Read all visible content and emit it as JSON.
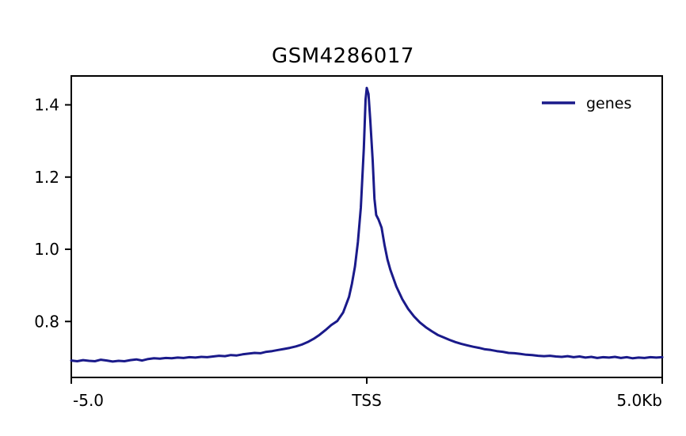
{
  "figure": {
    "background": "#ffffff",
    "axis_color": "#000000",
    "tick_label_color": "#000000"
  },
  "chart_data": {
    "type": "line",
    "title": "GSM4286017",
    "xlabel": "",
    "ylabel": "",
    "x_unit": "Kb",
    "xlim": [
      -5.0,
      5.0
    ],
    "ylim": [
      0.645,
      1.48
    ],
    "grid": false,
    "legend_position": "upper right",
    "xticks": [
      {
        "pos": -5.0,
        "label": "-5.0",
        "anchor": "start"
      },
      {
        "pos": 0.0,
        "label": "TSS",
        "anchor": "middle"
      },
      {
        "pos": 5.0,
        "label": "5.0Kb",
        "anchor": "end"
      }
    ],
    "yticks": [
      {
        "pos": 0.8,
        "label": "0.8"
      },
      {
        "pos": 1.0,
        "label": "1.0"
      },
      {
        "pos": 1.2,
        "label": "1.2"
      },
      {
        "pos": 1.4,
        "label": "1.4"
      }
    ],
    "x": [
      -5.0,
      -4.9,
      -4.8,
      -4.7,
      -4.6,
      -4.5,
      -4.4,
      -4.3,
      -4.2,
      -4.1,
      -4.0,
      -3.9,
      -3.8,
      -3.7,
      -3.6,
      -3.5,
      -3.4,
      -3.3,
      -3.2,
      -3.1,
      -3.0,
      -2.9,
      -2.8,
      -2.7,
      -2.6,
      -2.5,
      -2.4,
      -2.3,
      -2.2,
      -2.1,
      -2.0,
      -1.9,
      -1.8,
      -1.7,
      -1.6,
      -1.5,
      -1.4,
      -1.3,
      -1.2,
      -1.1,
      -1.0,
      -0.9,
      -0.8,
      -0.7,
      -0.6,
      -0.5,
      -0.4,
      -0.3,
      -0.25,
      -0.2,
      -0.15,
      -0.1,
      -0.05,
      -0.02,
      0.0,
      0.03,
      0.06,
      0.1,
      0.13,
      0.16,
      0.2,
      0.25,
      0.3,
      0.35,
      0.4,
      0.5,
      0.6,
      0.7,
      0.8,
      0.9,
      1.0,
      1.1,
      1.2,
      1.3,
      1.4,
      1.5,
      1.6,
      1.7,
      1.8,
      1.9,
      2.0,
      2.1,
      2.2,
      2.3,
      2.4,
      2.5,
      2.6,
      2.7,
      2.8,
      2.9,
      3.0,
      3.1,
      3.2,
      3.3,
      3.4,
      3.5,
      3.6,
      3.7,
      3.8,
      3.9,
      4.0,
      4.1,
      4.2,
      4.3,
      4.4,
      4.5,
      4.6,
      4.7,
      4.8,
      4.9,
      5.0
    ],
    "series": [
      {
        "name": "genes",
        "color": "#1a1a8a",
        "line_width": 3,
        "values": [
          0.692,
          0.69,
          0.693,
          0.691,
          0.69,
          0.694,
          0.692,
          0.689,
          0.691,
          0.69,
          0.693,
          0.695,
          0.692,
          0.696,
          0.698,
          0.697,
          0.699,
          0.698,
          0.7,
          0.699,
          0.701,
          0.7,
          0.702,
          0.701,
          0.703,
          0.705,
          0.704,
          0.707,
          0.706,
          0.709,
          0.711,
          0.713,
          0.712,
          0.716,
          0.718,
          0.721,
          0.724,
          0.727,
          0.731,
          0.736,
          0.743,
          0.752,
          0.763,
          0.776,
          0.79,
          0.801,
          0.825,
          0.868,
          0.905,
          0.952,
          1.02,
          1.115,
          1.28,
          1.415,
          1.447,
          1.43,
          1.355,
          1.245,
          1.14,
          1.095,
          1.082,
          1.06,
          1.012,
          0.972,
          0.943,
          0.897,
          0.862,
          0.835,
          0.814,
          0.797,
          0.784,
          0.773,
          0.763,
          0.756,
          0.749,
          0.743,
          0.738,
          0.734,
          0.73,
          0.727,
          0.723,
          0.721,
          0.718,
          0.716,
          0.713,
          0.712,
          0.71,
          0.708,
          0.707,
          0.705,
          0.704,
          0.705,
          0.703,
          0.702,
          0.704,
          0.701,
          0.703,
          0.7,
          0.702,
          0.699,
          0.701,
          0.7,
          0.702,
          0.699,
          0.701,
          0.698,
          0.7,
          0.699,
          0.701,
          0.7,
          0.701
        ]
      }
    ],
    "legend": {
      "entries": [
        {
          "label": "genes",
          "color": "#1a1a8a"
        }
      ]
    }
  }
}
